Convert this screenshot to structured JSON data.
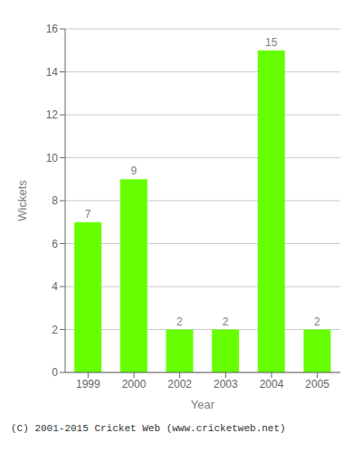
{
  "chart_data": {
    "type": "bar",
    "categories": [
      "1999",
      "2000",
      "2002",
      "2003",
      "2004",
      "2005"
    ],
    "values": [
      7,
      9,
      2,
      2,
      15,
      2
    ],
    "color": "#66ff00",
    "xlabel": "Year",
    "ylabel": "Wickets",
    "ylim": [
      0,
      16
    ],
    "yticks": [
      0,
      2,
      4,
      6,
      8,
      10,
      12,
      14,
      16
    ],
    "grid": true,
    "data_labels": true,
    "annotations": [
      "(C) 2001-2015 Cricket Web (www.cricketweb.net)"
    ]
  }
}
